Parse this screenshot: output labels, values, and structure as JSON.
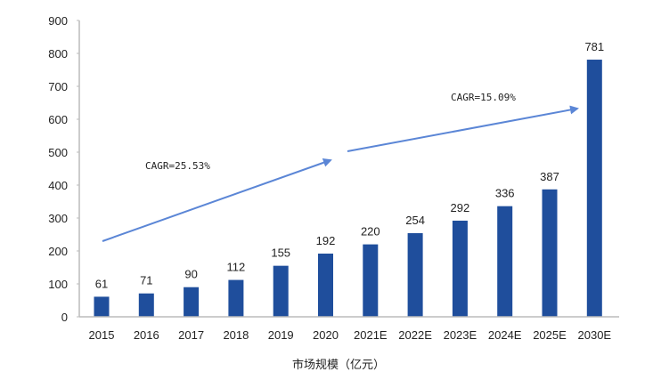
{
  "chart_data": {
    "type": "bar",
    "categories": [
      "2015",
      "2016",
      "2017",
      "2018",
      "2019",
      "2020",
      "2021E",
      "2022E",
      "2023E",
      "2024E",
      "2025E",
      "2030E"
    ],
    "values": [
      61,
      71,
      90,
      112,
      155,
      192,
      220,
      254,
      292,
      336,
      387,
      781
    ],
    "xlabel": "市场规模（亿元）",
    "ylabel": "",
    "ylim": [
      0,
      900
    ],
    "yticks": [
      0,
      100,
      200,
      300,
      400,
      500,
      600,
      700,
      800,
      900
    ],
    "grid": false,
    "bar_color": "#1f4e9c",
    "arrow_color": "#5b86d6",
    "annotations": [
      {
        "text": "CAGR=25.53%",
        "from": "2015",
        "to": "2020"
      },
      {
        "text": "CAGR=15.09%",
        "from": "2021E",
        "to": "2030E"
      }
    ]
  }
}
